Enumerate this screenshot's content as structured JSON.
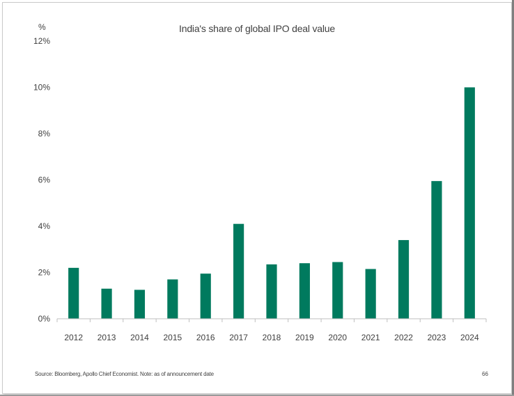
{
  "chart_data": {
    "type": "bar",
    "title": "India's share of global IPO deal value",
    "ylabel": "%",
    "xlabel": "",
    "categories": [
      "2012",
      "2013",
      "2014",
      "2015",
      "2016",
      "2017",
      "2018",
      "2019",
      "2020",
      "2021",
      "2022",
      "2023",
      "2024"
    ],
    "values": [
      2.2,
      1.3,
      1.25,
      1.7,
      1.95,
      4.1,
      2.35,
      2.4,
      2.45,
      2.15,
      3.4,
      5.95,
      10.0
    ],
    "ylim": [
      0,
      12
    ],
    "yticks": [
      0,
      2,
      4,
      6,
      8,
      10,
      12
    ],
    "ytick_labels": [
      "0%",
      "2%",
      "4%",
      "6%",
      "8%",
      "10%",
      "12%"
    ],
    "bar_color": "#007a5e",
    "grid": false,
    "legend": "none"
  },
  "footer": {
    "source": "Source: Bloomberg, Apollo Chief Economist. Note: as of announcement date",
    "page_number": "66"
  }
}
